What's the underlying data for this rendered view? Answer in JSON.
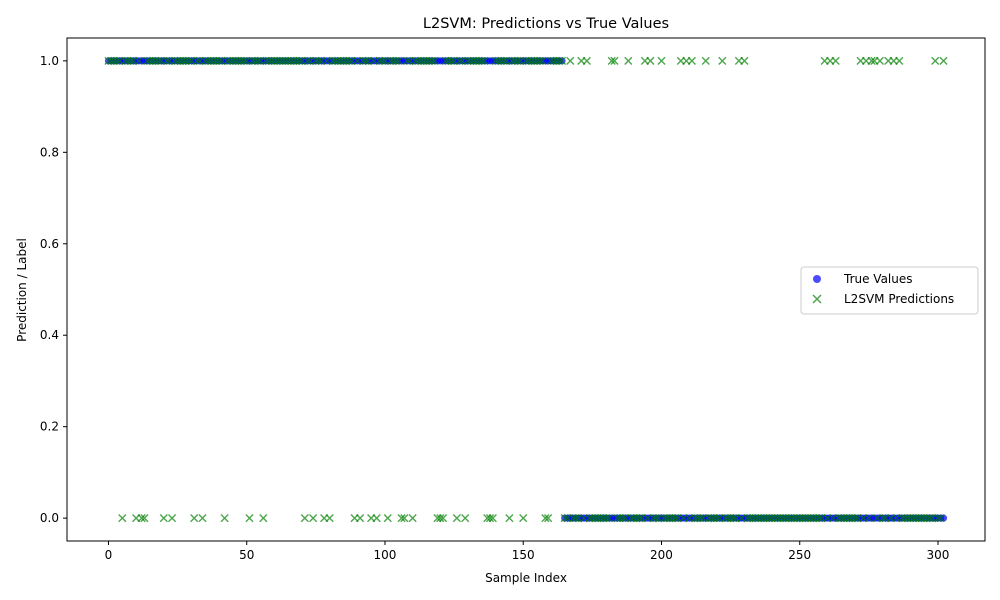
{
  "chart_data": {
    "type": "scatter",
    "title": "L2SVM: Predictions vs True Values",
    "xlabel": "Sample Index",
    "ylabel": "Prediction / Label",
    "xlim": [
      -15,
      317
    ],
    "ylim": [
      -0.05,
      1.05
    ],
    "xticks": [
      0,
      50,
      100,
      150,
      200,
      250,
      300
    ],
    "yticks": [
      0.0,
      0.2,
      0.4,
      0.6,
      0.8,
      1.0
    ],
    "xtick_labels": [
      "0",
      "50",
      "100",
      "150",
      "200",
      "250",
      "300"
    ],
    "ytick_labels": [
      "0.0",
      "0.2",
      "0.4",
      "0.6",
      "0.8",
      "1.0"
    ],
    "grid": false,
    "legend_position": "center-right",
    "series": [
      {
        "name": "True Values",
        "marker": "circle",
        "color": "#0000ff",
        "opacity": 0.7,
        "ranges": [
          {
            "start": 0,
            "end": 164,
            "value": 1
          },
          {
            "start": 165,
            "end": 302,
            "value": 0
          }
        ]
      },
      {
        "name": "L2SVM Predictions",
        "marker": "x",
        "color": "#008000",
        "opacity": 0.7,
        "ranges": [
          {
            "start": 0,
            "end": 164,
            "value": 1
          },
          {
            "start": 165,
            "end": 302,
            "value": 0
          }
        ],
        "flips_to_0": [
          5,
          10,
          12,
          13,
          20,
          23,
          31,
          34,
          42,
          51,
          56,
          71,
          74,
          78,
          80,
          89,
          91,
          95,
          97,
          101,
          106,
          107,
          110,
          119,
          120,
          121,
          126,
          129,
          137,
          138,
          139,
          145,
          150,
          158,
          159
        ],
        "flips_to_1": [
          167,
          171,
          173,
          182,
          183,
          188,
          194,
          196,
          200,
          207,
          209,
          211,
          216,
          222,
          228,
          230,
          259,
          261,
          263,
          272,
          274,
          276,
          277,
          279,
          282,
          284,
          286,
          299,
          302
        ]
      }
    ]
  }
}
